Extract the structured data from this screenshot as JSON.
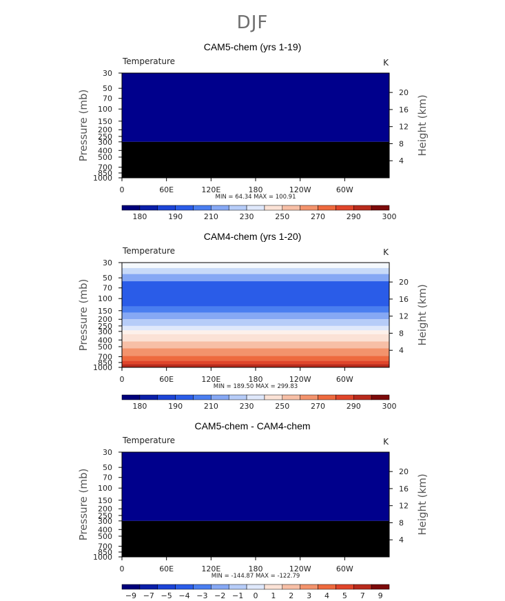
{
  "page": {
    "title": "DJF"
  },
  "chart_data": [
    {
      "type": "heatmap",
      "title": "CAM5-chem (yrs 1-19)",
      "variable": "Temperature",
      "units": "K",
      "ylabel": "Pressure (mb)",
      "y2label": "Height (km)",
      "xticks": [
        "0",
        "60E",
        "120E",
        "180",
        "120W",
        "60W"
      ],
      "xlim": [
        0,
        360
      ],
      "yticks": [
        "30",
        "50",
        "70",
        "100",
        "150",
        "200",
        "250",
        "300",
        "400",
        "500",
        "700",
        "850",
        "1000"
      ],
      "ylim": [
        1000,
        30
      ],
      "y2ticks": [
        "20",
        "16",
        "12",
        "8",
        "4"
      ],
      "stats": "MIN =   64.34   MAX = 100.91",
      "fields": [
        {
          "p_top": 30,
          "p_bottom": 300,
          "color": "#00008c"
        },
        {
          "p_top": 300,
          "p_bottom": 1000,
          "color": "#000000"
        }
      ],
      "colorbar": {
        "colors": [
          "#00007a",
          "#0a1fa8",
          "#1c44d6",
          "#2a5ce8",
          "#4a7ef0",
          "#86a8f4",
          "#b6ccf8",
          "#dfe8fb",
          "#fbe2d6",
          "#f7bfa6",
          "#f3936c",
          "#ee6a3e",
          "#e0452a",
          "#b82a1c",
          "#7c0a0a"
        ],
        "labels": [
          "180",
          "190",
          "210",
          "230",
          "250",
          "270",
          "290",
          "300"
        ]
      }
    },
    {
      "type": "heatmap",
      "title": "CAM4-chem (yrs 1-20)",
      "variable": "Temperature",
      "units": "K",
      "ylabel": "Pressure (mb)",
      "y2label": "Height (km)",
      "xticks": [
        "0",
        "60E",
        "120E",
        "180",
        "120W",
        "60W"
      ],
      "xlim": [
        0,
        360
      ],
      "yticks": [
        "30",
        "50",
        "70",
        "100",
        "150",
        "200",
        "250",
        "300",
        "400",
        "500",
        "700",
        "850",
        "1000"
      ],
      "ylim": [
        1000,
        30
      ],
      "y2ticks": [
        "20",
        "16",
        "12",
        "8",
        "4"
      ],
      "stats": "MIN =  189.50   MAX = 299.83",
      "fields": [
        {
          "p_top": 30,
          "p_bottom": 36,
          "color": "#f4f8fd"
        },
        {
          "p_top": 36,
          "p_bottom": 44,
          "color": "#c8daf8"
        },
        {
          "p_top": 44,
          "p_bottom": 56,
          "color": "#86a8f4"
        },
        {
          "p_top": 56,
          "p_bottom": 130,
          "color": "#2a5ce8"
        },
        {
          "p_top": 130,
          "p_bottom": 160,
          "color": "#4a7ef0"
        },
        {
          "p_top": 160,
          "p_bottom": 200,
          "color": "#86a8f4"
        },
        {
          "p_top": 200,
          "p_bottom": 250,
          "color": "#b6ccf8"
        },
        {
          "p_top": 250,
          "p_bottom": 290,
          "color": "#dfe8fb"
        },
        {
          "p_top": 290,
          "p_bottom": 330,
          "color": "#fdf1ea"
        },
        {
          "p_top": 330,
          "p_bottom": 420,
          "color": "#fbe2d6"
        },
        {
          "p_top": 420,
          "p_bottom": 530,
          "color": "#f7bfa6"
        },
        {
          "p_top": 530,
          "p_bottom": 680,
          "color": "#f3936c"
        },
        {
          "p_top": 680,
          "p_bottom": 800,
          "color": "#ee6a3e"
        },
        {
          "p_top": 800,
          "p_bottom": 900,
          "color": "#e0452a"
        },
        {
          "p_top": 900,
          "p_bottom": 1000,
          "color": "#b82a1c"
        }
      ],
      "colorbar": {
        "colors": [
          "#00007a",
          "#0a1fa8",
          "#1c44d6",
          "#2a5ce8",
          "#4a7ef0",
          "#86a8f4",
          "#b6ccf8",
          "#dfe8fb",
          "#fbe2d6",
          "#f7bfa6",
          "#f3936c",
          "#ee6a3e",
          "#e0452a",
          "#b82a1c",
          "#7c0a0a"
        ],
        "labels": [
          "180",
          "190",
          "210",
          "230",
          "250",
          "270",
          "290",
          "300"
        ]
      }
    },
    {
      "type": "heatmap",
      "title": "CAM5-chem - CAM4-chem",
      "variable": "Temperature",
      "units": "K",
      "ylabel": "Pressure (mb)",
      "y2label": "Height (km)",
      "xticks": [
        "0",
        "60E",
        "120E",
        "180",
        "120W",
        "60W"
      ],
      "xlim": [
        0,
        360
      ],
      "yticks": [
        "30",
        "50",
        "70",
        "100",
        "150",
        "200",
        "250",
        "300",
        "400",
        "500",
        "700",
        "850",
        "1000"
      ],
      "ylim": [
        1000,
        30
      ],
      "y2ticks": [
        "20",
        "16",
        "12",
        "8",
        "4"
      ],
      "stats": "MIN = -144.87   MAX = -122.79",
      "fields": [
        {
          "p_top": 30,
          "p_bottom": 300,
          "color": "#00008c"
        },
        {
          "p_top": 300,
          "p_bottom": 1000,
          "color": "#000000"
        }
      ],
      "colorbar": {
        "colors": [
          "#00007a",
          "#0a1fa8",
          "#1c44d6",
          "#2a5ce8",
          "#4a7ef0",
          "#86a8f4",
          "#b6ccf8",
          "#dfe8fb",
          "#fbe2d6",
          "#f7bfa6",
          "#f3936c",
          "#ee6a3e",
          "#e0452a",
          "#b82a1c",
          "#7c0a0a"
        ],
        "labels": [
          "−9",
          "−7",
          "−5",
          "−4",
          "−3",
          "−2",
          "−1",
          "0",
          "1",
          "2",
          "3",
          "4",
          "5",
          "7",
          "9"
        ]
      }
    }
  ]
}
